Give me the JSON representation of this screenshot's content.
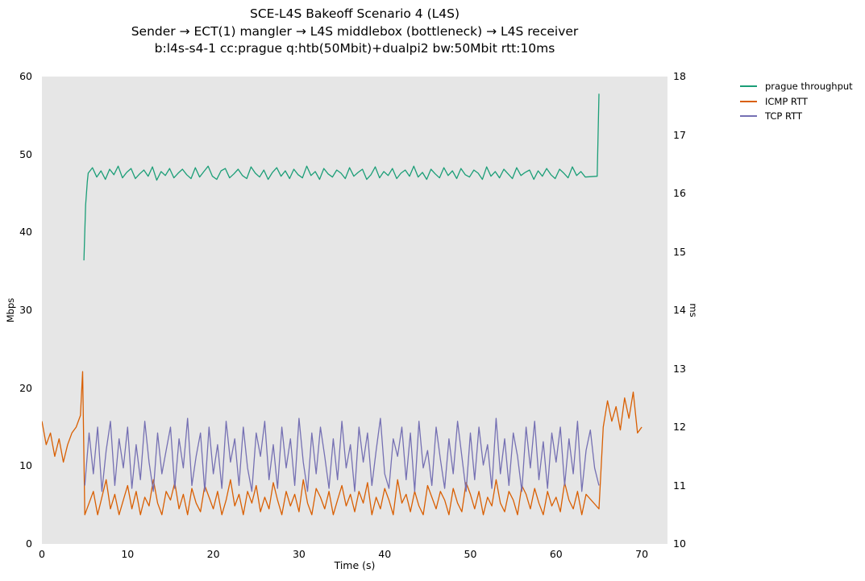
{
  "chart_data": {
    "type": "line",
    "title_lines": [
      "SCE-L4S Bakeoff Scenario 4 (L4S)",
      "Sender → ECT(1) mangler → L4S middlebox (bottleneck) → L4S receiver",
      "b:l4s-s4-1 cc:prague q:htb(50Mbit)+dualpi2 bw:50Mbit rtt:10ms"
    ],
    "xlabel": "Time (s)",
    "ylabel_left": "Mbps",
    "ylabel_right": "ms",
    "xlim": [
      0,
      73
    ],
    "xticks": [
      0,
      10,
      20,
      30,
      40,
      50,
      60,
      70
    ],
    "ylim_left": [
      0,
      60
    ],
    "yticks_left": [
      0,
      10,
      20,
      30,
      40,
      50,
      60
    ],
    "ylim_right": [
      10,
      18
    ],
    "yticks_right": [
      10,
      11,
      12,
      13,
      14,
      15,
      16,
      17,
      18
    ],
    "background_color": "#e6e6e6",
    "grid": false,
    "legend_position": "top-right-outside",
    "series": [
      {
        "name": "prague throughput",
        "color": "#1b9e77",
        "axis": "left",
        "unit": "Mbps",
        "segments": [
          {
            "t0": 4.9,
            "dt": 0.2,
            "values": [
              36.4,
              43.5,
              46.5
            ]
          },
          {
            "t0": 5.4,
            "dt": 0.5,
            "values": [
              47.6,
              48.3,
              47.1,
              47.9,
              46.8,
              48.1,
              47.4,
              48.5,
              47.0,
              47.7,
              48.2,
              46.9,
              47.5,
              48.0,
              47.2,
              48.4,
              46.7,
              47.8,
              47.3,
              48.2,
              47.0,
              47.6,
              48.1,
              47.4,
              46.9,
              48.3,
              47.1,
              47.8,
              48.5,
              47.2,
              46.8,
              47.9,
              48.2,
              47.0,
              47.5,
              48.1,
              47.3,
              46.9,
              48.4,
              47.6,
              47.1,
              48.0,
              46.8,
              47.7,
              48.3,
              47.2,
              47.9,
              46.9,
              48.1,
              47.4,
              47.0,
              48.5,
              47.3,
              47.8,
              46.8,
              48.2,
              47.5,
              47.1,
              48.0,
              47.6,
              46.9,
              48.3,
              47.2,
              47.7,
              48.1,
              46.8,
              47.4,
              48.4,
              47.0,
              47.8,
              47.3,
              48.2,
              46.9,
              47.6,
              48.0,
              47.2,
              48.5,
              47.1,
              47.7,
              46.8,
              48.1,
              47.5,
              47.0,
              48.3,
              47.3,
              47.9,
              46.9,
              48.2,
              47.4,
              47.1,
              48.0,
              47.6,
              46.8,
              48.4,
              47.2,
              47.8,
              47.0,
              48.1,
              47.5,
              46.9,
              48.3,
              47.3,
              47.7,
              48.0,
              46.8,
              47.9,
              47.2,
              48.2,
              47.4,
              46.9,
              48.1,
              47.6,
              47.0,
              48.4,
              47.3,
              47.8,
              47.1
            ]
          },
          {
            "t0": 64.8,
            "dt": 0.2,
            "values": [
              47.2,
              57.8
            ]
          }
        ]
      },
      {
        "name": "ICMP RTT",
        "color": "#d95f02",
        "axis": "right",
        "unit": "ms",
        "segments": [
          {
            "t0": 0.0,
            "dt": 0.5,
            "values": [
              12.1,
              11.7,
              11.9,
              11.5,
              11.8,
              11.4,
              11.7,
              11.9,
              12.0,
              12.2
            ]
          },
          {
            "t0": 4.75,
            "dt": 0.25,
            "values": [
              12.95,
              10.5
            ]
          },
          {
            "t0": 5.5,
            "dt": 0.5,
            "values": [
              10.7,
              10.9,
              10.5,
              10.8,
              11.1,
              10.6,
              10.85,
              10.5,
              10.75,
              11.0,
              10.6,
              10.9,
              10.5,
              10.8,
              10.65,
              11.1,
              10.7,
              10.5,
              10.9,
              10.75,
              11.05,
              10.6,
              10.85,
              10.5,
              10.95,
              10.7,
              10.55,
              11.0,
              10.8,
              10.6,
              10.9,
              10.5,
              10.75,
              11.1,
              10.65,
              10.85,
              10.5,
              10.9,
              10.7,
              11.0,
              10.55,
              10.8,
              10.6,
              11.05,
              10.75,
              10.5,
              10.9,
              10.65,
              10.85,
              10.55,
              11.1,
              10.7,
              10.5,
              10.95,
              10.8,
              10.6,
              10.9,
              10.5,
              10.75,
              11.0,
              10.65,
              10.85,
              10.55,
              10.9,
              10.7,
              11.05,
              10.5,
              10.8,
              10.6,
              10.95,
              10.75,
              10.5,
              11.1,
              10.7,
              10.85,
              10.55,
              10.9,
              10.65,
              10.5,
              11.0,
              10.8,
              10.6,
              10.9,
              10.75,
              10.5,
              10.95,
              10.7,
              10.55,
              11.05,
              10.85,
              10.6,
              10.9,
              10.5,
              10.8,
              10.65,
              11.1,
              10.7,
              10.55,
              10.9,
              10.75,
              10.5,
              11.0,
              10.85,
              10.6,
              10.95,
              10.7,
              10.5,
              10.9,
              10.65,
              10.8,
              10.55,
              11.05,
              10.75,
              10.6,
              10.9,
              10.5,
              10.85
            ]
          },
          {
            "t0": 65.0,
            "dt": 0.5,
            "values": [
              10.6,
              12.0,
              12.45,
              12.1,
              12.35,
              11.95,
              12.5,
              12.15,
              12.6,
              11.9,
              12.0
            ]
          }
        ]
      },
      {
        "name": "TCP RTT",
        "color": "#7570b3",
        "axis": "right",
        "unit": "ms",
        "segments": [
          {
            "t0": 5.0,
            "dt": 0.5,
            "values": [
              11.0,
              11.9,
              11.2,
              12.0,
              10.9,
              11.6,
              12.1,
              11.0,
              11.8,
              11.3,
              12.0,
              10.95,
              11.7,
              11.1,
              12.1,
              11.4,
              10.9,
              11.9,
              11.2,
              11.6,
              12.0,
              10.95,
              11.8,
              11.3,
              12.15,
              11.0,
              11.5,
              11.9,
              10.9,
              12.0,
              11.2,
              11.7,
              10.95,
              12.1,
              11.4,
              11.8,
              11.0,
              12.0,
              11.3,
              10.9,
              11.9,
              11.5,
              12.1,
              11.1,
              11.7,
              10.95,
              12.0,
              11.3,
              11.8,
              11.0,
              12.15,
              11.4,
              10.9,
              11.9,
              11.2,
              12.0,
              11.5,
              10.95,
              11.8,
              11.1,
              12.1,
              11.3,
              11.7,
              10.9,
              12.0,
              11.4,
              11.9,
              11.0,
              11.6,
              12.15,
              11.2,
              10.95,
              11.8,
              11.5,
              12.0,
              11.1,
              11.9,
              10.9,
              12.1,
              11.3,
              11.6,
              11.0,
              12.0,
              11.45,
              10.95,
              11.8,
              11.2,
              12.1,
              11.5,
              10.9,
              11.9,
              11.1,
              12.0,
              11.35,
              11.7,
              10.95,
              12.15,
              11.2,
              11.8,
              11.0,
              11.9,
              11.5,
              10.9,
              12.0,
              11.3,
              12.1,
              11.1,
              11.75,
              10.95,
              11.9,
              11.4,
              12.0,
              11.0,
              11.8,
              11.2,
              12.1,
              10.9,
              11.6,
              11.95,
              11.3,
              11.0
            ]
          }
        ]
      }
    ]
  }
}
